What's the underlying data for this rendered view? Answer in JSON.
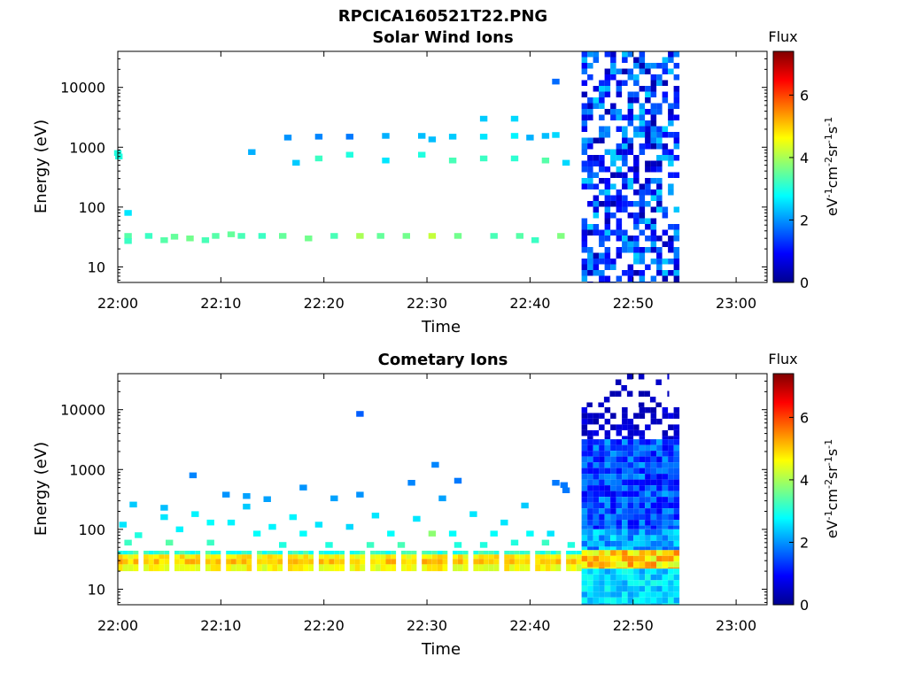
{
  "figure_title": "RPCICA160521T22.PNG",
  "colors": {
    "colormap": "jet",
    "background": "#ffffff"
  },
  "chart_data": [
    {
      "type": "heatmap",
      "title": "Solar Wind Ions",
      "xlabel": "Time",
      "ylabel": "Energy (eV)",
      "x_ticks": [
        "22:00",
        "22:10",
        "22:20",
        "22:30",
        "22:40",
        "22:50",
        "23:00"
      ],
      "x_range_minutes": [
        0,
        63
      ],
      "y_scale": "log",
      "y_ticks": [
        "10",
        "100",
        "1000",
        "10000"
      ],
      "y_range": [
        5.5,
        40000
      ],
      "colorbar": {
        "title": "Flux",
        "label": "eV-1cm-2sr-1s-1",
        "ticks": [
          "0",
          "2",
          "4",
          "6"
        ],
        "range": [
          0,
          7.4
        ]
      },
      "regions": [
        {
          "label": "dense region",
          "t_range": [
            45,
            54.5
          ],
          "e_range": [
            5.5,
            40000
          ],
          "flux_range": [
            0.3,
            2.5
          ],
          "fill": 0.6
        }
      ],
      "points": [
        [
          0,
          800,
          3
        ],
        [
          0.1,
          700,
          3
        ],
        [
          1,
          80,
          2.6
        ],
        [
          1,
          33,
          3.4
        ],
        [
          1,
          27,
          3.2
        ],
        [
          3,
          33,
          3.2
        ],
        [
          4.5,
          28,
          3.4
        ],
        [
          5.5,
          32,
          3.5
        ],
        [
          7,
          30,
          3.6
        ],
        [
          8.5,
          28,
          3.3
        ],
        [
          9.5,
          33,
          3.4
        ],
        [
          11,
          35,
          3.5
        ],
        [
          12,
          33,
          3.3
        ],
        [
          13,
          830,
          2.2
        ],
        [
          14,
          33,
          3.2
        ],
        [
          16,
          33,
          3.5
        ],
        [
          16.5,
          1450,
          2.0
        ],
        [
          17.3,
          550,
          2.4
        ],
        [
          18.5,
          30,
          3.6
        ],
        [
          19.5,
          1500,
          1.9
        ],
        [
          19.5,
          650,
          3.2
        ],
        [
          21,
          33,
          3.3
        ],
        [
          22.5,
          1500,
          1.8
        ],
        [
          22.5,
          750,
          3.0
        ],
        [
          23.5,
          33,
          4.0
        ],
        [
          25.5,
          33,
          3.5
        ],
        [
          26,
          1550,
          2.2
        ],
        [
          26,
          600,
          2.6
        ],
        [
          28,
          33,
          3.6
        ],
        [
          29.5,
          1550,
          2.3
        ],
        [
          29.5,
          750,
          3.0
        ],
        [
          30.5,
          33,
          4.2
        ],
        [
          30.5,
          1350,
          2.3
        ],
        [
          32.5,
          1500,
          2.4
        ],
        [
          32.5,
          600,
          3.3
        ],
        [
          33,
          33,
          3.6
        ],
        [
          35.5,
          3000,
          2.4
        ],
        [
          35.5,
          1500,
          2.6
        ],
        [
          35.5,
          650,
          3.2
        ],
        [
          36.5,
          33,
          3.3
        ],
        [
          38.5,
          3000,
          2.5
        ],
        [
          38.5,
          1550,
          2.7
        ],
        [
          38.5,
          650,
          3.1
        ],
        [
          39,
          33,
          3.4
        ],
        [
          40,
          1450,
          2.2
        ],
        [
          40.5,
          28,
          3.2
        ],
        [
          41.5,
          1550,
          2.3
        ],
        [
          41.5,
          600,
          3.4
        ],
        [
          42.5,
          12500,
          1.7
        ],
        [
          42.5,
          1600,
          2.5
        ],
        [
          43,
          33,
          3.7
        ],
        [
          43.5,
          550,
          2.5
        ]
      ]
    },
    {
      "type": "heatmap",
      "title": "Cometary Ions",
      "xlabel": "Time",
      "ylabel": "Energy (eV)",
      "x_ticks": [
        "22:00",
        "22:10",
        "22:20",
        "22:30",
        "22:40",
        "22:50",
        "23:00"
      ],
      "x_range_minutes": [
        0,
        63
      ],
      "y_scale": "log",
      "y_ticks": [
        "10",
        "100",
        "1000",
        "10000"
      ],
      "y_range": [
        5.5,
        40000
      ],
      "colorbar": {
        "title": "Flux",
        "label": "eV-1cm-2sr-1s-1",
        "ticks": [
          "0",
          "2",
          "4",
          "6"
        ],
        "range": [
          0,
          7.4
        ]
      },
      "regions": [
        {
          "label": "sparse high-energy",
          "t_range": [
            45,
            54.5
          ],
          "e_range": [
            3200,
            11000
          ],
          "flux_range": [
            0.3,
            0.8
          ],
          "fill": 0.6
        },
        {
          "label": "blue band",
          "t_range": [
            45,
            54.5
          ],
          "e_range": [
            100,
            3200
          ],
          "flux_range": [
            0.8,
            2.2
          ],
          "fill": 1.0
        },
        {
          "label": "cyan band",
          "t_range": [
            45,
            54.5
          ],
          "e_range": [
            45,
            100
          ],
          "flux_range": [
            1.5,
            2.8
          ],
          "fill": 1.0
        },
        {
          "label": "orange band",
          "t_range": [
            45,
            54.5
          ],
          "e_range": [
            22,
            45
          ],
          "flux_range": [
            4.2,
            5.6
          ],
          "fill": 1.0
        },
        {
          "label": "low-energy cyan",
          "t_range": [
            45,
            54.5
          ],
          "e_range": [
            5.5,
            22
          ],
          "flux_range": [
            2.0,
            3.0
          ],
          "fill": 1.0
        },
        {
          "label": "spikes",
          "t_range": [
            45.5,
            53.5
          ],
          "e_range": [
            11000,
            40000
          ],
          "flux_range": [
            0.3,
            0.6
          ],
          "fill": 0.3
        }
      ],
      "points": [
        [
          0.5,
          120,
          2.6
        ],
        [
          1,
          60,
          3.2
        ],
        [
          1.5,
          260,
          2.4
        ],
        [
          2,
          80,
          3.0
        ],
        [
          4.5,
          230,
          2.3
        ],
        [
          4.5,
          160,
          2.6
        ],
        [
          5,
          60,
          3.4
        ],
        [
          6,
          100,
          2.7
        ],
        [
          7.3,
          800,
          1.9
        ],
        [
          7.5,
          180,
          2.7
        ],
        [
          9,
          130,
          2.8
        ],
        [
          9,
          60,
          3.2
        ],
        [
          10.5,
          380,
          2.0
        ],
        [
          11,
          130,
          2.7
        ],
        [
          12.5,
          240,
          2.4
        ],
        [
          12.5,
          360,
          2.1
        ],
        [
          13.5,
          85,
          2.8
        ],
        [
          14.5,
          320,
          2.1
        ],
        [
          15,
          110,
          2.7
        ],
        [
          16,
          55,
          3.0
        ],
        [
          17,
          160,
          2.7
        ],
        [
          18,
          500,
          2.0
        ],
        [
          18,
          85,
          2.8
        ],
        [
          19.5,
          120,
          2.6
        ],
        [
          20.5,
          55,
          3.0
        ],
        [
          21,
          330,
          2.1
        ],
        [
          22.5,
          110,
          2.5
        ],
        [
          23.5,
          380,
          2.0
        ],
        [
          23.5,
          8500,
          1.6
        ],
        [
          24.5,
          55,
          3.2
        ],
        [
          25,
          170,
          2.6
        ],
        [
          26.5,
          85,
          2.8
        ],
        [
          27.5,
          55,
          3.3
        ],
        [
          28.5,
          600,
          1.9
        ],
        [
          29,
          150,
          2.6
        ],
        [
          30.5,
          85,
          3.8
        ],
        [
          30.8,
          1200,
          1.9
        ],
        [
          31.5,
          330,
          2.1
        ],
        [
          32.5,
          85,
          2.8
        ],
        [
          33,
          55,
          3.0
        ],
        [
          33,
          650,
          1.8
        ],
        [
          34.5,
          180,
          2.6
        ],
        [
          35.5,
          55,
          3.0
        ],
        [
          36.5,
          85,
          2.8
        ],
        [
          37.5,
          130,
          2.6
        ],
        [
          38.5,
          60,
          3.0
        ],
        [
          39.5,
          250,
          2.4
        ],
        [
          40,
          85,
          2.8
        ],
        [
          41.5,
          60,
          3.2
        ],
        [
          42,
          85,
          2.6
        ],
        [
          42.5,
          600,
          1.8
        ],
        [
          43.3,
          550,
          1.8
        ],
        [
          43.5,
          450,
          1.8
        ],
        [
          44,
          55,
          3.0
        ]
      ],
      "band": {
        "description": "main band 22:00-22:45",
        "levels": [
          [
            44,
            3.1
          ],
          [
            38,
            4.7
          ],
          [
            32,
            5.0
          ],
          [
            26,
            4.6
          ],
          [
            20,
            3.4
          ]
        ],
        "gaps_minutes": [
          2,
          5,
          8,
          10,
          13,
          16,
          19,
          22,
          24,
          27,
          29,
          32,
          34,
          37,
          40,
          43
        ]
      }
    }
  ]
}
